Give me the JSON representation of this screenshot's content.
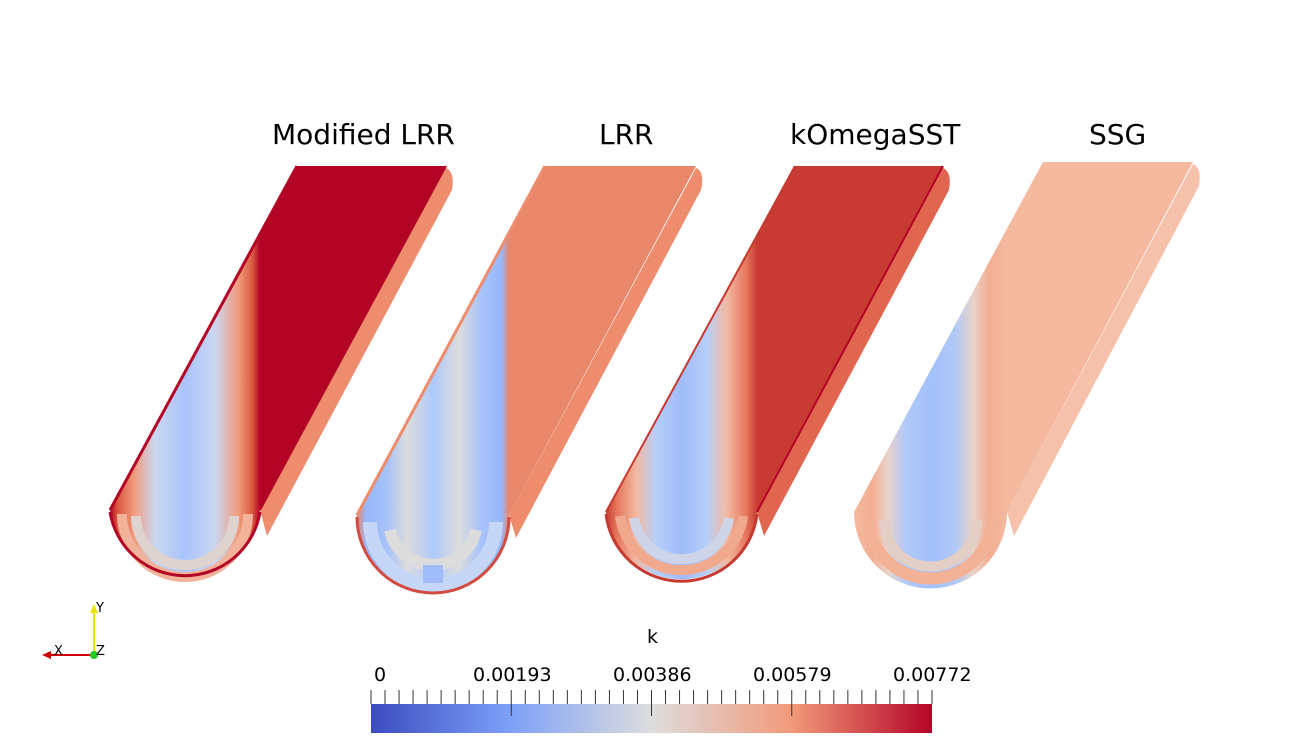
{
  "panels": [
    {
      "title": "Modified LRR",
      "variant": "modified"
    },
    {
      "title": "LRR",
      "variant": "lrr"
    },
    {
      "title": "kOmegaSST",
      "variant": "komega"
    },
    {
      "title": "SSG",
      "variant": "ssg"
    }
  ],
  "colorbar": {
    "title": "k",
    "tick_labels": [
      "0",
      "0.00193",
      "0.00386",
      "0.00579",
      "0.00772"
    ],
    "range": [
      0,
      0.00772
    ],
    "colors": [
      "#3b4cc0",
      "#7ea1f8",
      "#dddddd",
      "#f29a7a",
      "#b40426"
    ]
  },
  "axes": {
    "x": "X",
    "y": "Y",
    "z": "Z"
  }
}
